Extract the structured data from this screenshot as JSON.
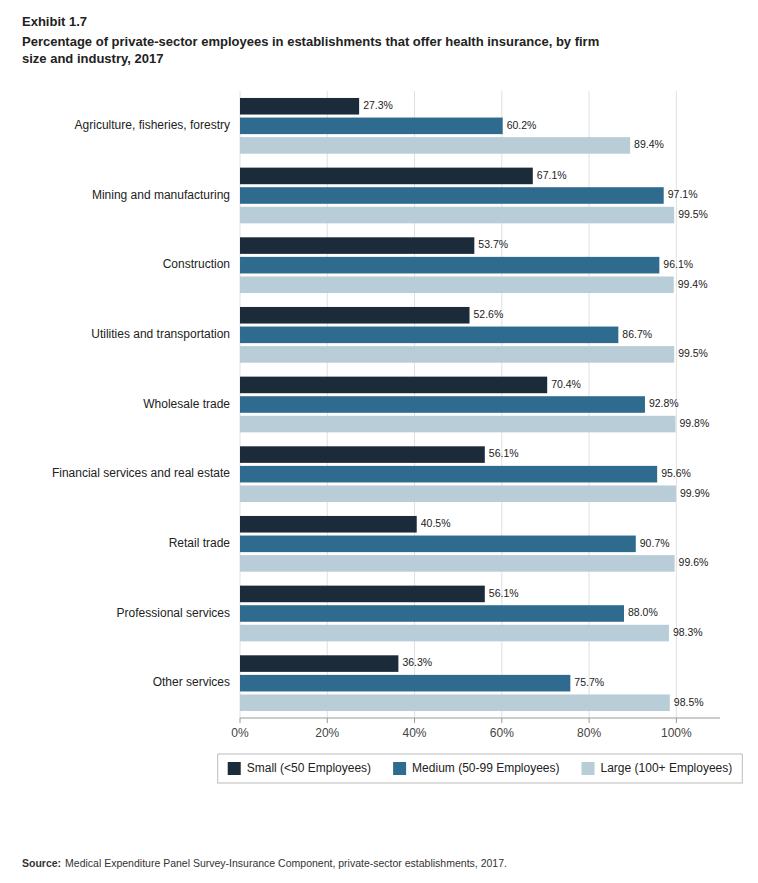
{
  "chart_data": {
    "type": "bar",
    "orientation": "horizontal",
    "title": "Exhibit 1.7",
    "subtitle": "Percentage of private-sector employees in establishments that offer health insurance, by firm\nsize and industry, 2017",
    "annotations": [
      "Source:",
      "Medical Expenditure Panel Survey-Insurance Component, private-sector establishments, 2017."
    ],
    "categories": [
      "Agriculture, fisheries, forestry",
      "Mining and manufacturing",
      "Construction",
      "Utilities and transportation",
      "Wholesale trade",
      "Financial services and real estate",
      "Retail trade",
      "Professional services",
      "Other services"
    ],
    "series": [
      {
        "name": "Small (<50 Employees)",
        "color": "#1c2b3a",
        "values": [
          27.3,
          67.1,
          53.7,
          52.6,
          70.4,
          56.1,
          40.5,
          56.1,
          36.3
        ],
        "value_labels": [
          "27.3%",
          "67.1%",
          "53.7%",
          "52.6%",
          "70.4%",
          "56.1%",
          "40.5%",
          "56.1%",
          "36.3%"
        ]
      },
      {
        "name": "Medium (50-99 Employees)",
        "color": "#2e6b8e",
        "values": [
          60.2,
          97.1,
          96.1,
          86.7,
          92.8,
          95.6,
          90.7,
          88.0,
          75.7
        ],
        "value_labels": [
          "60.2%",
          "97.1%",
          "96.1%",
          "86.7%",
          "92.8%",
          "95.6%",
          "90.7%",
          "88.0%",
          "75.7%"
        ]
      },
      {
        "name": "Large (100+ Employees)",
        "color": "#b8cdd8",
        "values": [
          89.4,
          99.5,
          99.4,
          99.5,
          99.8,
          99.9,
          99.6,
          98.3,
          98.5
        ],
        "value_labels": [
          "89.4%",
          "99.5%",
          "99.4%",
          "99.5%",
          "99.8%",
          "99.9%",
          "99.6%",
          "98.3%",
          "98.5%"
        ]
      }
    ],
    "xlim": [
      0,
      110
    ],
    "xticks": [
      {
        "value": 0,
        "label": "0%"
      },
      {
        "value": 20,
        "label": "20%"
      },
      {
        "value": 40,
        "label": "40%"
      },
      {
        "value": 60,
        "label": "60%"
      },
      {
        "value": 80,
        "label": "80%"
      },
      {
        "value": 100,
        "label": "100%"
      }
    ],
    "grid": true,
    "data_labels": true,
    "legend": "bottom"
  }
}
